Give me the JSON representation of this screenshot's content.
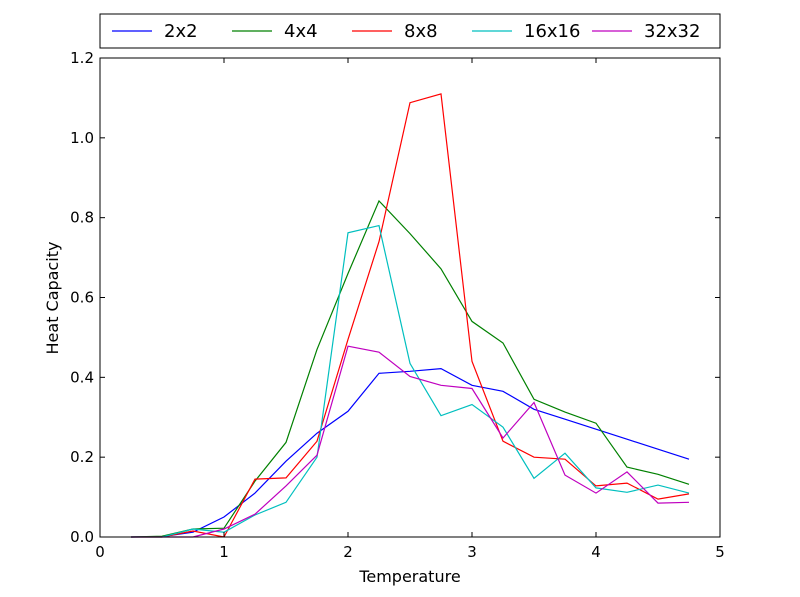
{
  "chart_data": {
    "type": "line",
    "title": "",
    "xlabel": "Temperature",
    "ylabel": "Heat Capacity",
    "xlim": [
      0,
      5
    ],
    "ylim": [
      0,
      1.2
    ],
    "xticks": [
      0,
      1,
      2,
      3,
      4,
      5
    ],
    "yticks": [
      0.0,
      0.2,
      0.4,
      0.6,
      0.8,
      1.0,
      1.2
    ],
    "xtick_labels": [
      "0",
      "1",
      "2",
      "3",
      "4",
      "5"
    ],
    "ytick_labels": [
      "0.0",
      "0.2",
      "0.4",
      "0.6",
      "0.8",
      "1.0",
      "1.2"
    ],
    "grid": false,
    "legend_position": "top, outside plot, horizontal",
    "x": [
      0.25,
      0.5,
      0.75,
      1.0,
      1.25,
      1.5,
      1.75,
      2.0,
      2.25,
      2.5,
      2.75,
      3.0,
      3.25,
      3.5,
      3.75,
      4.0,
      4.25,
      4.5,
      4.75
    ],
    "series": [
      {
        "name": "2x2",
        "color": "#0000ff",
        "values": [
          0.0,
          0.001,
          0.012,
          0.05,
          0.11,
          0.19,
          0.26,
          0.315,
          0.41,
          0.415,
          0.422,
          0.38,
          0.365,
          0.32,
          0.295,
          0.27,
          0.245,
          0.22,
          0.195
        ]
      },
      {
        "name": "4x4",
        "color": "#008000",
        "values": [
          0.0,
          0.002,
          0.02,
          0.022,
          0.14,
          0.237,
          0.47,
          0.66,
          0.842,
          0.76,
          0.672,
          0.54,
          0.486,
          0.345,
          0.313,
          0.285,
          0.175,
          0.157,
          0.132
        ]
      },
      {
        "name": "8x8",
        "color": "#ff0000",
        "values": [
          0.0,
          0.0,
          0.015,
          0.0,
          0.145,
          0.148,
          0.24,
          0.495,
          0.74,
          1.088,
          1.11,
          0.44,
          0.24,
          0.2,
          0.195,
          0.128,
          0.135,
          0.095,
          0.108
        ]
      },
      {
        "name": "16x16",
        "color": "#00bfbf",
        "values": [
          0.0,
          0.0,
          0.02,
          0.012,
          0.055,
          0.087,
          0.2,
          0.762,
          0.78,
          0.435,
          0.304,
          0.332,
          0.275,
          0.147,
          0.21,
          0.123,
          0.112,
          0.13,
          0.11
        ]
      },
      {
        "name": "32x32",
        "color": "#bf00bf",
        "values": [
          0.0,
          0.0,
          0.0,
          0.02,
          0.057,
          0.128,
          0.205,
          0.478,
          0.463,
          0.402,
          0.38,
          0.372,
          0.248,
          0.337,
          0.155,
          0.11,
          0.163,
          0.085,
          0.087
        ]
      }
    ]
  }
}
